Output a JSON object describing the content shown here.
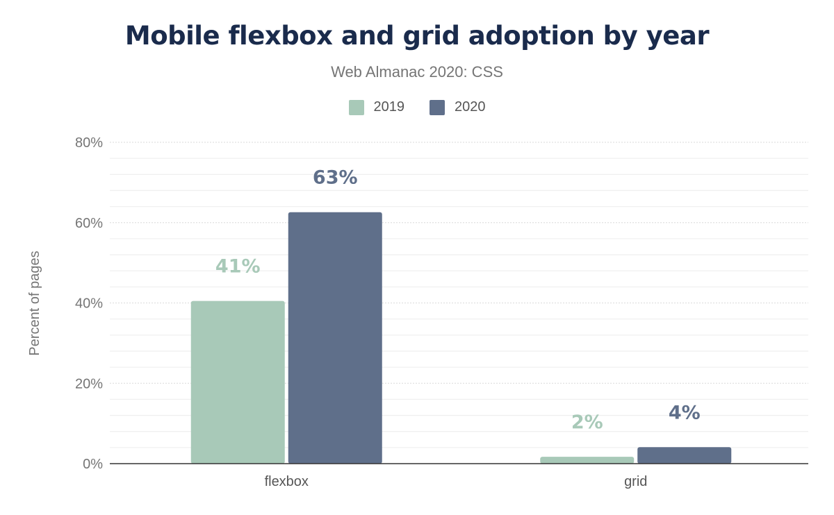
{
  "chart_data": {
    "type": "bar",
    "title": "Mobile flexbox and grid adoption by year",
    "subtitle": "Web Almanac 2020: CSS",
    "categories": [
      "flexbox",
      "grid"
    ],
    "series": [
      {
        "name": "2019",
        "color": "#a8c9b8",
        "values": [
          40.5,
          1.7
        ],
        "labels": [
          "41%",
          "2%"
        ]
      },
      {
        "name": "2020",
        "color": "#5f6f8a",
        "values": [
          62.6,
          4.1
        ],
        "labels": [
          "63%",
          "4%"
        ]
      }
    ],
    "ylabel": "Percent of pages",
    "xlabel": "",
    "ylim": [
      0,
      80
    ],
    "yticks": [
      0,
      20,
      40,
      60,
      80
    ],
    "ytick_labels": [
      "0%",
      "20%",
      "40%",
      "60%",
      "80%"
    ],
    "grid": true,
    "legend": "top"
  }
}
